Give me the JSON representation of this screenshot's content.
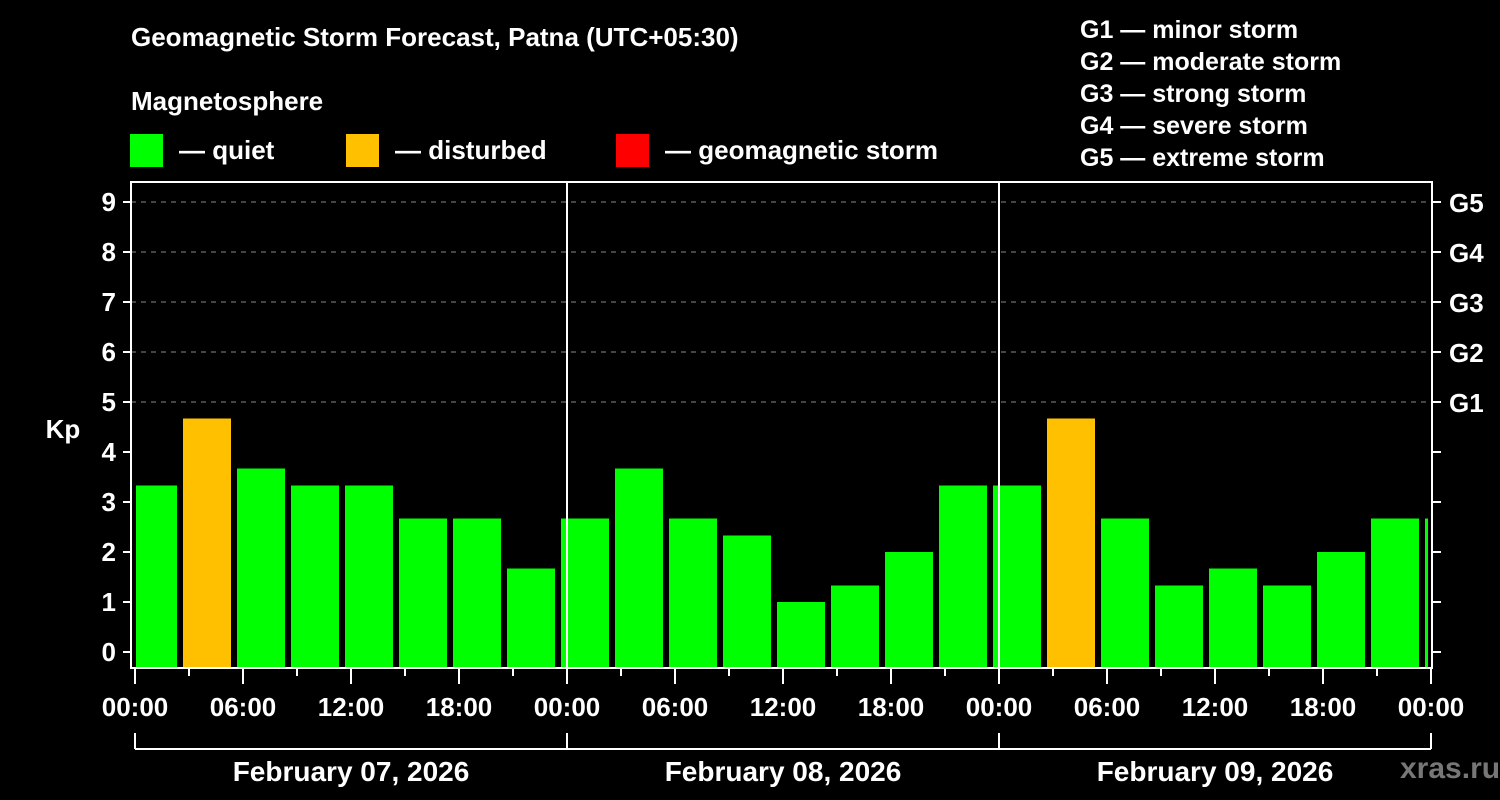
{
  "title": "Geomagnetic Storm Forecast, Patna (UTC+05:30)",
  "subtitle": "Magnetosphere",
  "legend": [
    {
      "label": "— quiet",
      "color": "#00ff00"
    },
    {
      "label": "— disturbed",
      "color": "#ffc000"
    },
    {
      "label": "— geomagnetic storm",
      "color": "#ff0000"
    }
  ],
  "storm_scale": [
    "G1 — minor storm",
    "G2 — moderate storm",
    "G3 — strong storm",
    "G4 — severe storm",
    "G5 — extreme storm"
  ],
  "watermark": "xras.ru",
  "chart_data": {
    "type": "bar",
    "title": "Geomagnetic Storm Forecast, Patna (UTC+05:30)",
    "ylabel": "Kp",
    "ylim": [
      0,
      9
    ],
    "yticks": [
      0,
      1,
      2,
      3,
      4,
      5,
      6,
      7,
      8,
      9
    ],
    "right_axis_labels": [
      {
        "kp": 5,
        "label": "G1"
      },
      {
        "kp": 6,
        "label": "G2"
      },
      {
        "kp": 7,
        "label": "G3"
      },
      {
        "kp": 8,
        "label": "G4"
      },
      {
        "kp": 9,
        "label": "G5"
      }
    ],
    "grid": "dashed horizontal at Kp 5-9",
    "x_tick_labels": [
      "00:00",
      "06:00",
      "12:00",
      "18:00",
      "00:00",
      "06:00",
      "12:00",
      "18:00",
      "00:00",
      "06:00",
      "12:00",
      "18:00",
      "00:00"
    ],
    "days": [
      "February 07, 2026",
      "February 08, 2026",
      "February 09, 2026"
    ],
    "bar_intervals_local": "3-hour UTC intervals shifted by +05:30 (e.g. 02:30–05:30)",
    "categories": [
      "Feb07 00:00-02:30",
      "Feb07 02:30-05:30",
      "Feb07 05:30-08:30",
      "Feb07 08:30-11:30",
      "Feb07 11:30-14:30",
      "Feb07 14:30-17:30",
      "Feb07 17:30-20:30",
      "Feb07 20:30-23:30",
      "Feb07 23:30-02:30",
      "Feb08 02:30-05:30",
      "Feb08 05:30-08:30",
      "Feb08 08:30-11:30",
      "Feb08 11:30-14:30",
      "Feb08 14:30-17:30",
      "Feb08 17:30-20:30",
      "Feb08 20:30-23:30",
      "Feb08 23:30-02:30",
      "Feb09 02:30-05:30",
      "Feb09 05:30-08:30",
      "Feb09 08:30-11:30",
      "Feb09 11:30-14:30",
      "Feb09 14:30-17:30",
      "Feb09 17:30-20:30",
      "Feb09 20:30-23:30",
      "Feb09 23:30-00:00"
    ],
    "values": [
      3.33,
      4.67,
      3.67,
      3.33,
      3.33,
      2.67,
      2.67,
      1.67,
      2.67,
      3.67,
      2.67,
      2.33,
      1.0,
      1.33,
      2.0,
      3.33,
      3.33,
      4.67,
      2.67,
      1.33,
      1.67,
      1.33,
      2.0,
      2.67,
      2.67
    ],
    "status": [
      "quiet",
      "disturbed",
      "quiet",
      "quiet",
      "quiet",
      "quiet",
      "quiet",
      "quiet",
      "quiet",
      "quiet",
      "quiet",
      "quiet",
      "quiet",
      "quiet",
      "quiet",
      "quiet",
      "quiet",
      "disturbed",
      "quiet",
      "quiet",
      "quiet",
      "quiet",
      "quiet",
      "quiet",
      "quiet"
    ],
    "colors": {
      "quiet": "#00ff00",
      "disturbed": "#ffc000",
      "storm": "#ff0000"
    }
  }
}
